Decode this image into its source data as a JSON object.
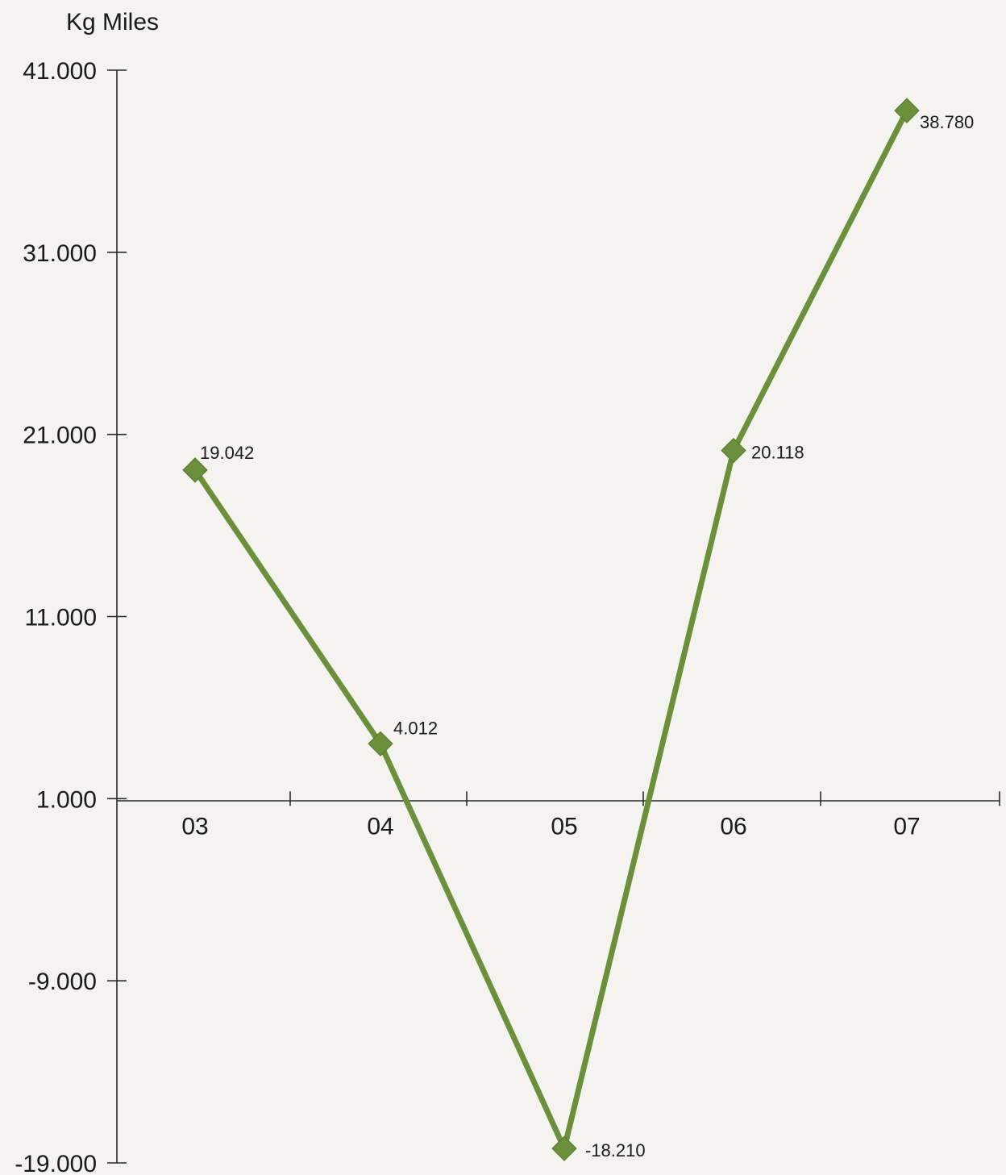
{
  "chart_data": {
    "type": "line",
    "unit_label": "Kg Miles",
    "categories": [
      "03",
      "04",
      "05",
      "06",
      "07"
    ],
    "series": [
      {
        "values": [
          19042,
          4012,
          -18210,
          20118,
          38780
        ]
      }
    ],
    "data_labels": [
      "19.042",
      "4.012",
      "-18.210",
      "20.118",
      "38.780"
    ],
    "y_ticks": [
      41000,
      31000,
      21000,
      11000,
      1000,
      -9000,
      -19000
    ],
    "y_tick_labels": [
      "41.000",
      "31.000",
      "21.000",
      "11.000",
      "1.000",
      "-9.000",
      "-19.000"
    ],
    "ylim": [
      -19000,
      41000
    ],
    "x_axis_crosses_at": 1000,
    "grid": false,
    "legend": "none",
    "colors": {
      "series": "#6b8f3a",
      "axis": "#2a2a2a",
      "background": "#f4f3ef"
    }
  }
}
